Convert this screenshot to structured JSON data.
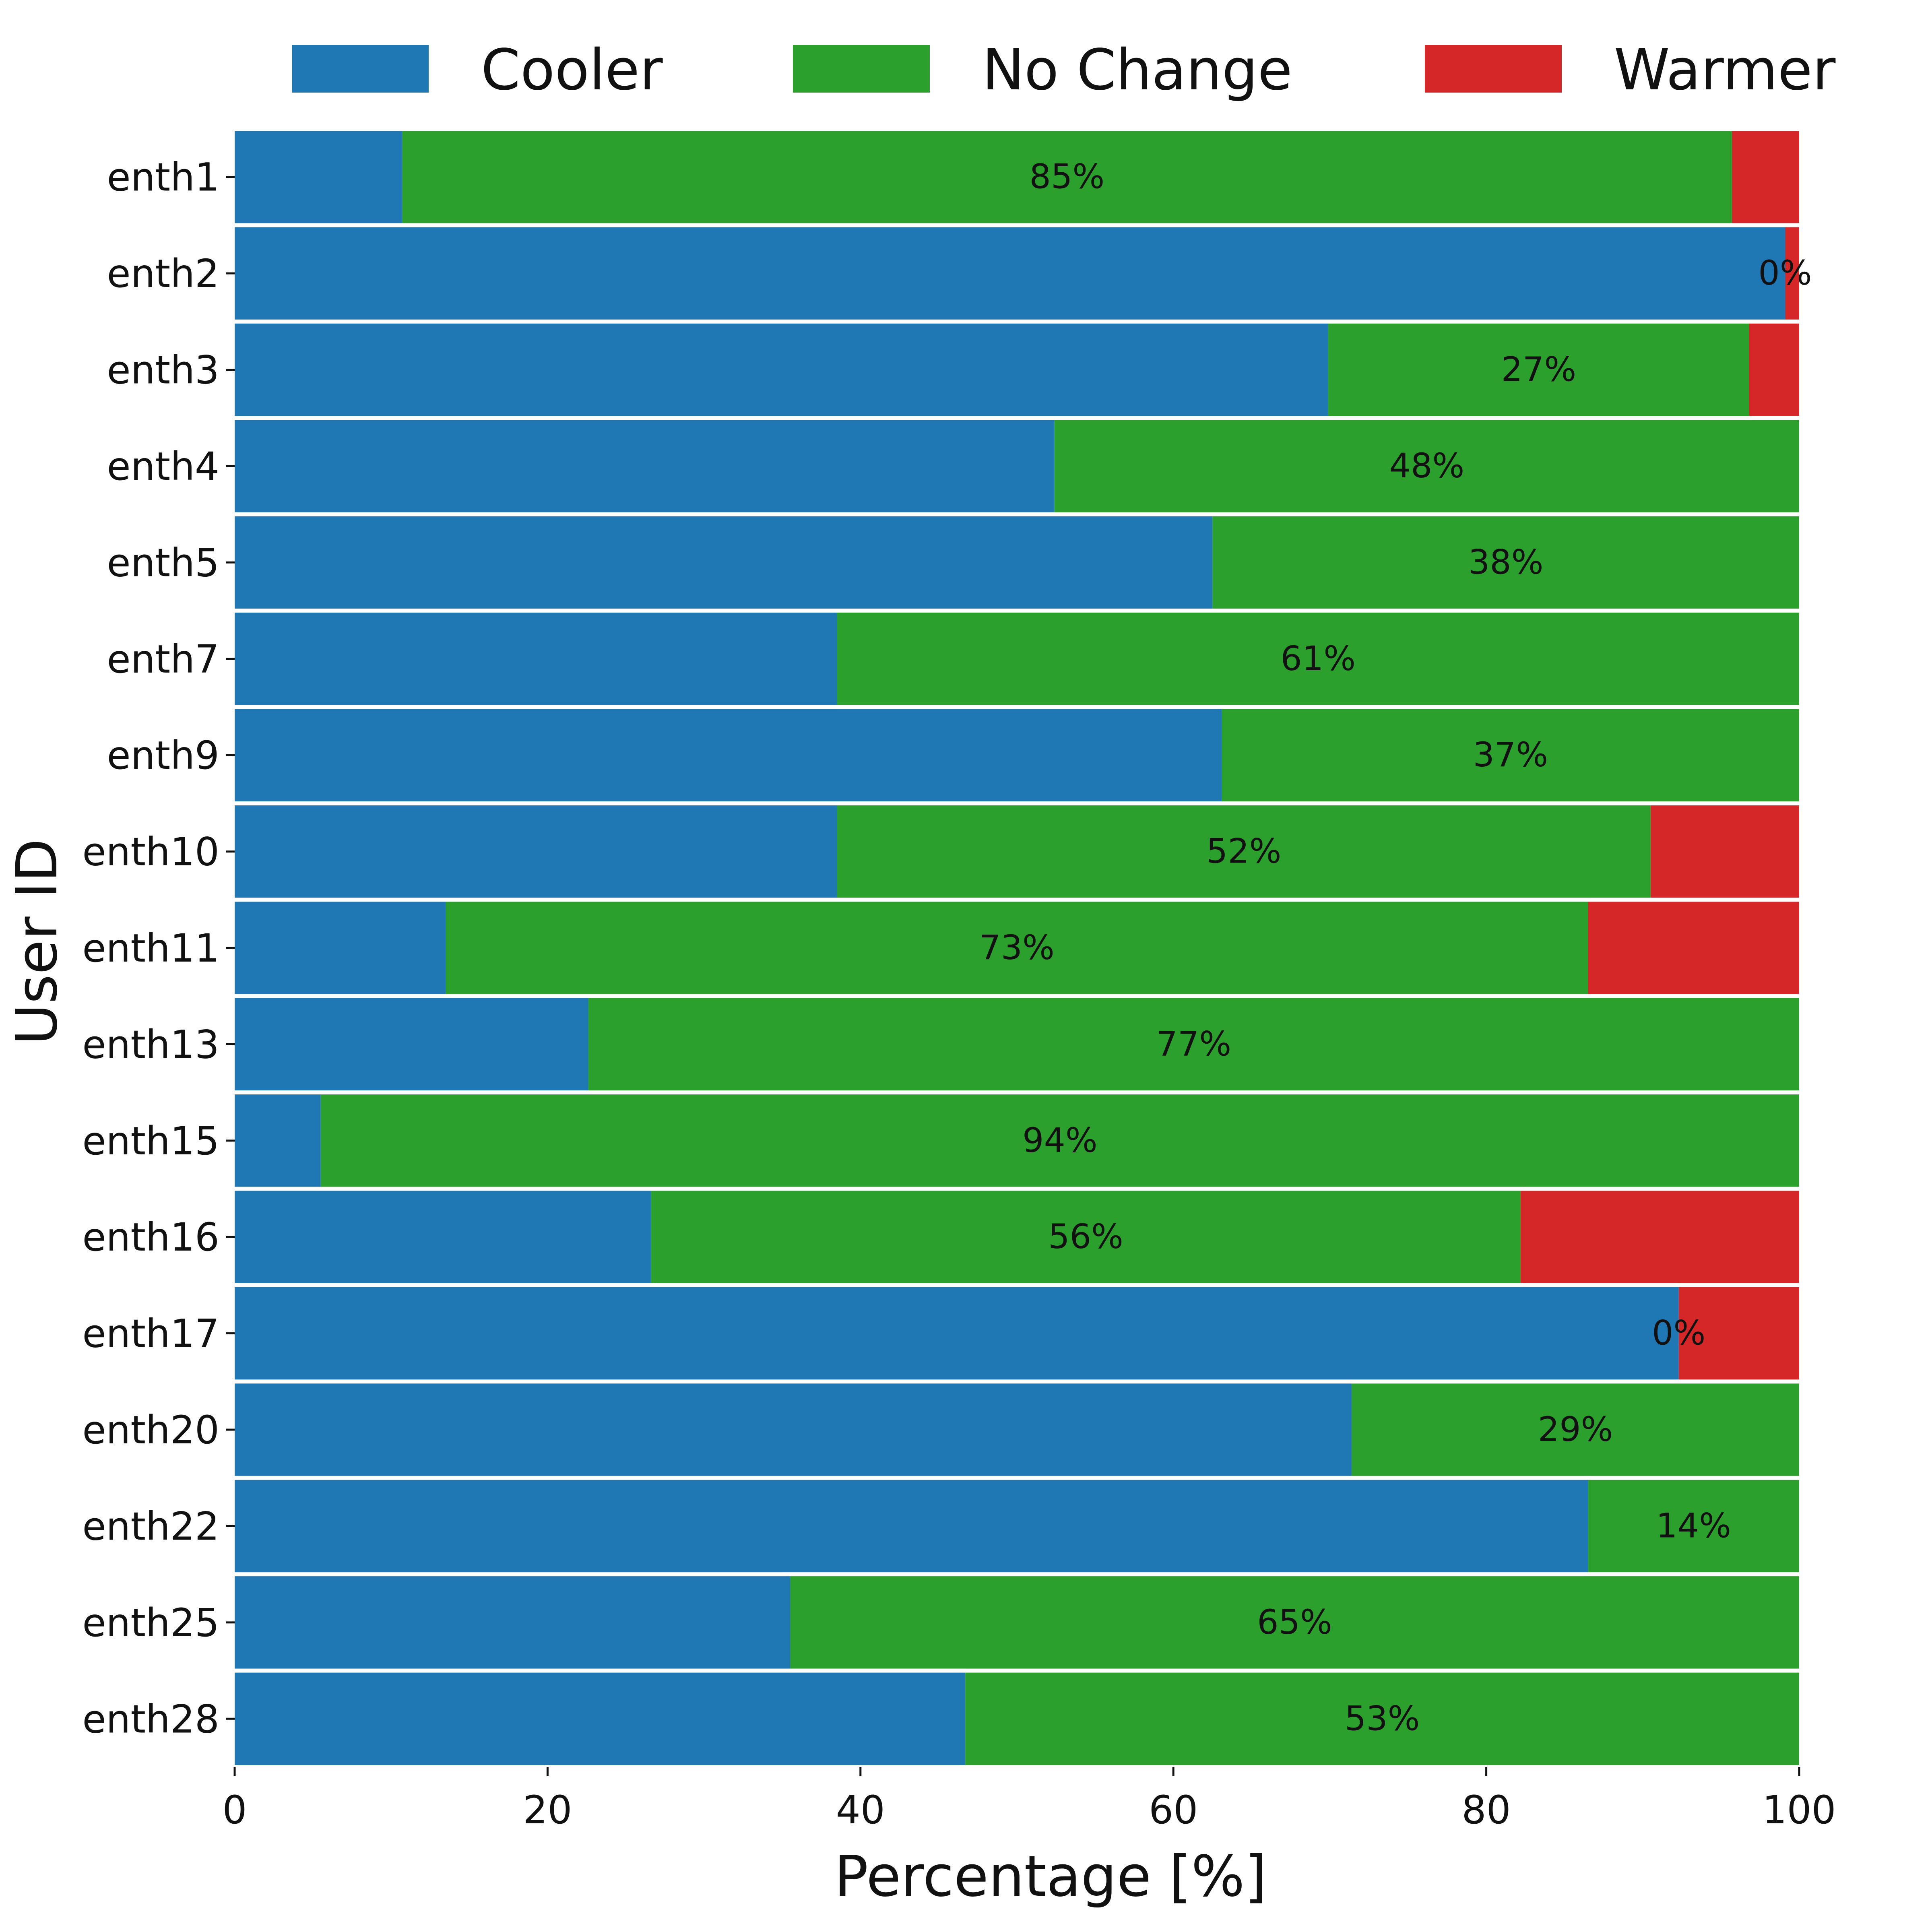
{
  "chart_data": {
    "type": "bar",
    "orientation": "horizontal",
    "stacked": true,
    "title": "",
    "xlabel": "Percentage [%]",
    "ylabel": "User ID",
    "xlim": [
      0,
      100
    ],
    "xticks": [
      "0",
      "20",
      "40",
      "60",
      "80",
      "100"
    ],
    "grid": false,
    "legend_position": "top",
    "categories": [
      "enth1",
      "enth2",
      "enth3",
      "enth4",
      "enth5",
      "enth7",
      "enth9",
      "enth10",
      "enth11",
      "enth13",
      "enth15",
      "enth16",
      "enth17",
      "enth20",
      "enth22",
      "enth25",
      "enth28"
    ],
    "series": [
      {
        "name": "Cooler",
        "color": "#1f77b4",
        "values": [
          10.7,
          99.1,
          69.9,
          52.4,
          62.5,
          38.5,
          63.1,
          38.5,
          13.5,
          22.6,
          5.5,
          26.6,
          92.3,
          71.4,
          86.5,
          35.5,
          46.7
        ]
      },
      {
        "name": "No Change",
        "color": "#2ca02c",
        "values": [
          85.0,
          0.0,
          26.9,
          47.6,
          37.5,
          61.5,
          36.9,
          52.0,
          73.0,
          77.4,
          94.5,
          55.6,
          0.0,
          28.6,
          13.5,
          64.5,
          53.3
        ]
      },
      {
        "name": "Warmer",
        "color": "#d62728",
        "values": [
          4.3,
          0.9,
          3.2,
          0.0,
          0.0,
          0.0,
          0.0,
          9.5,
          13.5,
          0.0,
          0.0,
          17.8,
          7.7,
          0.0,
          0.0,
          0.0,
          0.0
        ]
      }
    ],
    "bar_labels": [
      "85%",
      "0%",
      "27%",
      "48%",
      "38%",
      "61%",
      "37%",
      "52%",
      "73%",
      "77%",
      "94%",
      "56%",
      "0%",
      "29%",
      "14%",
      "65%",
      "53%"
    ]
  }
}
